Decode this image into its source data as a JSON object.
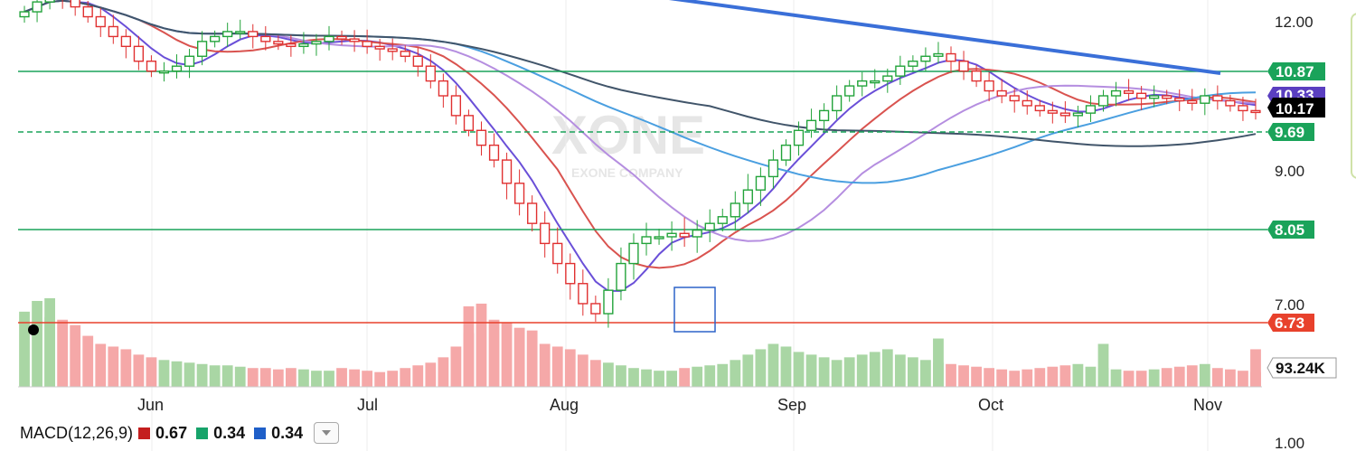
{
  "chart_data": {
    "type": "candlestick",
    "watermark": {
      "ticker": "XONE",
      "company": "EXONE COMPANY"
    },
    "x_labels": [
      "Jun",
      "Jul",
      "Aug",
      "Sep",
      "Oct",
      "Nov"
    ],
    "y_ticks": [
      "12.00",
      "9.00",
      "7.00"
    ],
    "ylim": [
      6.1,
      12.4
    ],
    "price_levels": [
      {
        "label": "10.87",
        "value": 10.87,
        "color": "#1aa35a",
        "style": "solid"
      },
      {
        "label": "9.69",
        "value": 9.69,
        "color": "#1aa35a",
        "style": "dashed"
      },
      {
        "label": "8.05",
        "value": 8.05,
        "color": "#1aa35a",
        "style": "solid"
      },
      {
        "label": "6.73",
        "value": 6.73,
        "color": "#e8412c",
        "style": "solid"
      }
    ],
    "overlapped_tags": [
      {
        "label": "10.33",
        "value": 10.33,
        "color": "#5a3fc0"
      },
      {
        "label": "10.17",
        "value": 10.17,
        "color": "#000000"
      }
    ],
    "volume_label": "93.24K",
    "closes": [
      12.2,
      12.4,
      12.6,
      12.5,
      12.3,
      12.1,
      11.9,
      11.7,
      11.5,
      11.2,
      11.0,
      11.0,
      11.1,
      11.3,
      11.6,
      11.7,
      11.8,
      11.8,
      11.7,
      11.6,
      11.55,
      11.5,
      11.55,
      11.6,
      11.7,
      11.65,
      11.6,
      11.5,
      11.45,
      11.4,
      11.3,
      11.1,
      10.8,
      10.5,
      10.1,
      9.8,
      9.5,
      9.2,
      8.8,
      8.5,
      8.2,
      7.9,
      7.6,
      7.3,
      7.0,
      6.85,
      7.2,
      7.6,
      7.9,
      8.0,
      8.0,
      8.05,
      8.0,
      8.1,
      8.2,
      8.3,
      8.5,
      8.7,
      8.9,
      9.2,
      9.5,
      9.8,
      10.0,
      10.2,
      10.5,
      10.7,
      10.8,
      10.8,
      10.9,
      11.1,
      11.2,
      11.3,
      11.35,
      11.2,
      11.0,
      10.8,
      10.6,
      10.5,
      10.4,
      10.3,
      10.2,
      10.15,
      10.1,
      10.15,
      10.3,
      10.5,
      10.6,
      10.55,
      10.45,
      10.5,
      10.45,
      10.4,
      10.35,
      10.5,
      10.4,
      10.3,
      10.2,
      10.17
    ],
    "volumes": [
      280,
      320,
      260,
      250,
      230,
      190,
      160,
      150,
      140,
      120,
      110,
      100,
      95,
      90,
      85,
      80,
      80,
      75,
      70,
      70,
      65,
      70,
      65,
      60,
      60,
      70,
      65,
      60,
      55,
      60,
      70,
      80,
      90,
      110,
      150,
      200,
      310,
      250,
      240,
      220,
      210,
      160,
      150,
      140,
      120,
      100,
      90,
      80,
      70,
      65,
      60,
      60,
      70,
      75,
      80,
      85,
      100,
      120,
      140,
      160,
      150,
      130,
      120,
      110,
      100,
      110,
      120,
      130,
      140,
      120,
      110,
      100,
      90,
      85,
      80,
      75,
      70,
      65,
      60,
      65,
      70,
      75,
      80,
      85,
      75,
      70,
      65,
      60,
      60,
      65,
      70,
      75,
      80,
      85,
      70,
      65,
      60,
      55
    ],
    "volume_spikes": [
      [
        2,
        330
      ],
      [
        35,
        300
      ],
      [
        72,
        180
      ],
      [
        85,
        160
      ],
      [
        97,
        140
      ]
    ],
    "downtrend": [
      [
        12.5,
        0.44
      ],
      [
        10.87,
        0.9
      ]
    ],
    "macd": {
      "label": "MACD(12,26,9)",
      "values": [
        {
          "value": "0.67",
          "color": "#c41e1e"
        },
        {
          "value": "0.34",
          "color": "#17a36a"
        },
        {
          "value": "0.34",
          "color": "#1f5fc8"
        }
      ],
      "axis_label": "1.00"
    }
  }
}
